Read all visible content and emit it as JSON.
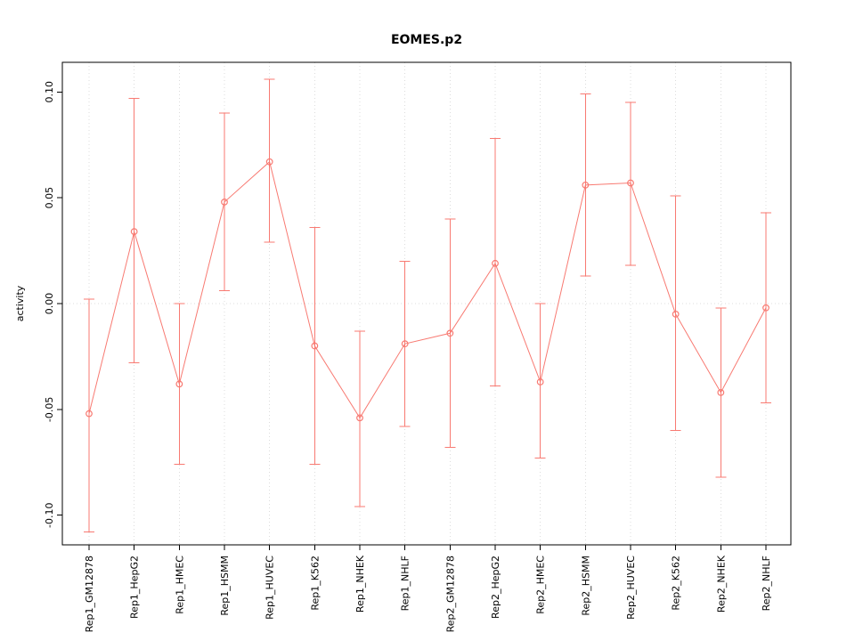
{
  "chart_data": {
    "type": "line",
    "title": "EOMES.p2",
    "xlabel": "",
    "ylabel": "activity",
    "grid": true,
    "legend_position": "none",
    "marker": "open-circle",
    "categories": [
      "Rep1_GM12878",
      "Rep1_HepG2",
      "Rep1_HMEC",
      "Rep1_HSMM",
      "Rep1_HUVEC",
      "Rep1_K562",
      "Rep1_NHEK",
      "Rep1_NHLF",
      "Rep2_GM12878",
      "Rep2_HepG2",
      "Rep2_HMEC",
      "Rep2_HSMM",
      "Rep2_HUVEC",
      "Rep2_K562",
      "Rep2_NHEK",
      "Rep2_NHLF"
    ],
    "series": [
      {
        "name": "activity",
        "values": [
          -0.052,
          0.034,
          -0.038,
          0.048,
          0.067,
          -0.02,
          -0.054,
          -0.019,
          -0.014,
          0.019,
          -0.037,
          0.056,
          0.057,
          -0.005,
          -0.042,
          -0.002
        ],
        "error_low": [
          -0.108,
          -0.028,
          -0.076,
          0.006,
          0.029,
          -0.076,
          -0.096,
          -0.058,
          -0.068,
          -0.039,
          -0.073,
          0.013,
          0.018,
          -0.06,
          -0.082,
          -0.047
        ],
        "error_high": [
          0.002,
          0.097,
          0.0,
          0.09,
          0.106,
          0.036,
          -0.013,
          0.02,
          0.04,
          0.078,
          0.0,
          0.099,
          0.095,
          0.051,
          -0.002,
          0.043
        ]
      }
    ],
    "yticks": [
      -0.1,
      -0.05,
      0.0,
      0.05,
      0.1
    ],
    "ytick_labels": [
      "-0.10",
      "-0.05",
      "0.00",
      "0.05",
      "0.10"
    ],
    "ylim": [
      -0.114,
      0.114
    ],
    "colors": {
      "series": "#f87a72",
      "grid": "#dcdcdc",
      "axis": "#000000",
      "background": "#ffffff"
    }
  }
}
